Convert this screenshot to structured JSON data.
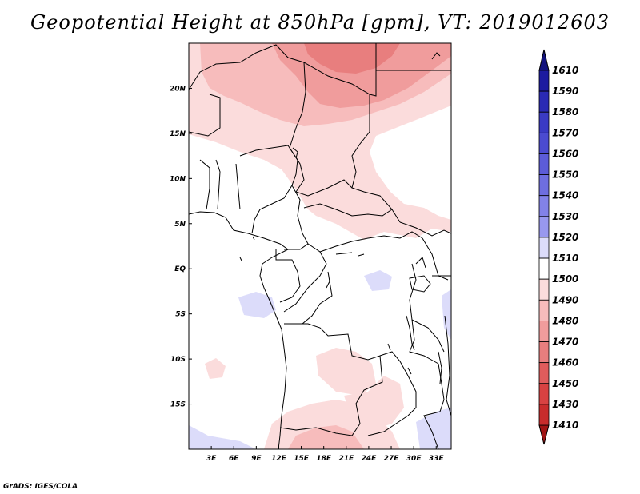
{
  "title": "Geopotential Height at 850hPa [gpm], VT: 2019012603",
  "footer": "GrADS: IGES/COLA",
  "map": {
    "lon_range": [
      0,
      35
    ],
    "lat_range": [
      -20,
      25
    ],
    "lon_ticks": [
      {
        "value": 3,
        "label": "3E"
      },
      {
        "value": 6,
        "label": "6E"
      },
      {
        "value": 9,
        "label": "9E"
      },
      {
        "value": 12,
        "label": "12E"
      },
      {
        "value": 15,
        "label": "15E"
      },
      {
        "value": 18,
        "label": "18E"
      },
      {
        "value": 21,
        "label": "21E"
      },
      {
        "value": 24,
        "label": "24E"
      },
      {
        "value": 27,
        "label": "27E"
      },
      {
        "value": 30,
        "label": "30E"
      },
      {
        "value": 33,
        "label": "33E"
      }
    ],
    "lat_ticks": [
      {
        "value": 20,
        "label": "20N"
      },
      {
        "value": 15,
        "label": "15N"
      },
      {
        "value": 10,
        "label": "10N"
      },
      {
        "value": 5,
        "label": "5N"
      },
      {
        "value": 0,
        "label": "EQ"
      },
      {
        "value": -5,
        "label": "5S"
      },
      {
        "value": -10,
        "label": "10S"
      },
      {
        "value": -15,
        "label": "15S"
      }
    ]
  },
  "colorbar": {
    "levels": [
      {
        "label": "1610",
        "color": "#1c1aa0"
      },
      {
        "label": "1590",
        "color": "#2a2ab4"
      },
      {
        "label": "1580",
        "color": "#3a3ac4"
      },
      {
        "label": "1570",
        "color": "#4b4bd0"
      },
      {
        "label": "1560",
        "color": "#5c5cd8"
      },
      {
        "label": "1550",
        "color": "#6e6ee0"
      },
      {
        "label": "1540",
        "color": "#8282e8"
      },
      {
        "label": "1530",
        "color": "#9898ee"
      },
      {
        "label": "1520",
        "color": "#dcdcfa"
      },
      {
        "label": "1510",
        "color": "#ffffff"
      },
      {
        "label": "1500",
        "color": "#fbdcdc"
      },
      {
        "label": "1490",
        "color": "#f7bcbc"
      },
      {
        "label": "1480",
        "color": "#f09c9c"
      },
      {
        "label": "1470",
        "color": "#e87e7e"
      },
      {
        "label": "1460",
        "color": "#e05c5c"
      },
      {
        "label": "1450",
        "color": "#d84242"
      },
      {
        "label": "1430",
        "color": "#c82c2c"
      },
      {
        "label": "1410",
        "color": "#b41c1c"
      }
    ],
    "top_cap_color": "#13137e",
    "bottom_cap_color": "#a01414"
  }
}
